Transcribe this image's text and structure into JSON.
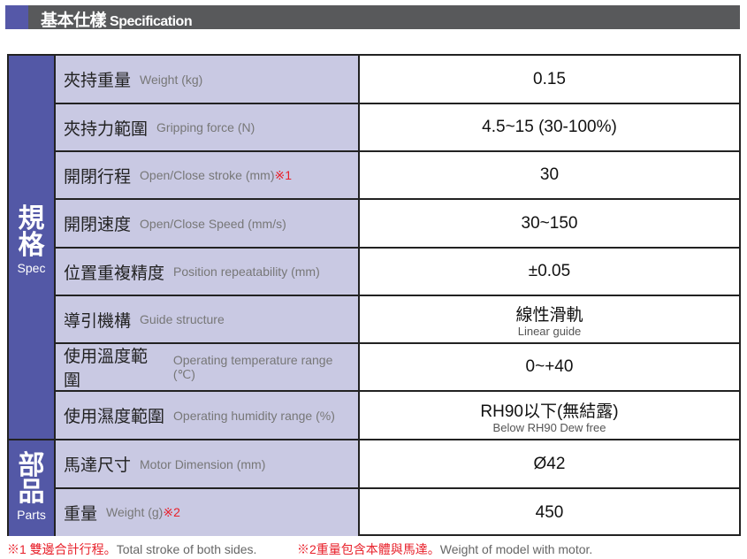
{
  "header": {
    "title_zh": "基本仕樣",
    "title_en": "Specification"
  },
  "groups": [
    {
      "zh": "規格",
      "en": "Spec"
    },
    {
      "zh": "部品",
      "en": "Parts"
    }
  ],
  "rows": [
    {
      "zh": "夾持重量",
      "en": "Weight (kg)",
      "note": "",
      "value": "0.15",
      "sub": ""
    },
    {
      "zh": "夾持力範圍",
      "en": "Gripping force (N)",
      "note": "",
      "value": "4.5~15 (30-100%)",
      "sub": ""
    },
    {
      "zh": "開閉行程",
      "en": "Open/Close  stroke (mm)",
      "note": "※1",
      "value": "30",
      "sub": ""
    },
    {
      "zh": "開閉速度",
      "en": "Open/Close Speed (mm/s)",
      "note": "",
      "value": "30~150",
      "sub": ""
    },
    {
      "zh": "位置重複精度",
      "en": "Position repeatability (mm)",
      "note": "",
      "value": "±0.05",
      "sub": ""
    },
    {
      "zh": "導引機構",
      "en": "Guide structure",
      "note": "",
      "value": "線性滑軌",
      "sub": "Linear guide"
    },
    {
      "zh": "使用溫度範圍",
      "en": "Operating temperature range (℃)",
      "note": "",
      "value": "0~+40",
      "sub": ""
    },
    {
      "zh": "使用濕度範圍",
      "en": "Operating humidity range (%)",
      "note": "",
      "value": "RH90以下(無結露)",
      "sub": "Below RH90 Dew free"
    },
    {
      "zh": "馬達尺寸",
      "en": "Motor Dimension (mm)",
      "note": "",
      "value": "Ø42",
      "sub": ""
    },
    {
      "zh": "重量",
      "en": "Weight (g)",
      "note": "※2",
      "value": "450",
      "sub": ""
    }
  ],
  "footnotes": [
    {
      "mark_zh": "※1 雙邊合計行程。",
      "en": "Total stroke of both sides."
    },
    {
      "mark_zh": "※2重量包含本體與馬達。",
      "en": "Weight of model with motor."
    }
  ],
  "colors": {
    "header": "#58595b",
    "accent": "#5358a6",
    "label_bg": "#c9c9e3",
    "note": "#e8202a"
  }
}
